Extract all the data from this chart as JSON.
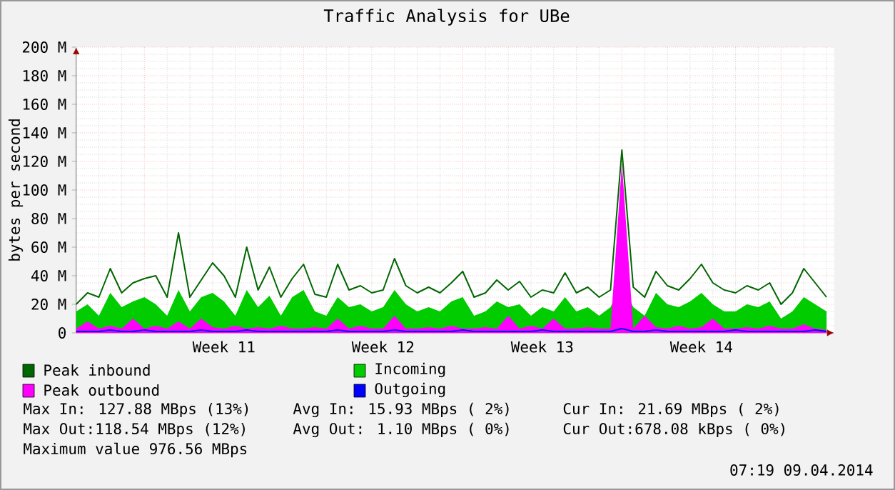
{
  "chart_data": {
    "type": "line",
    "title": "Traffic Analysis for UBe",
    "ylabel": "bytes per second",
    "categories": [
      null,
      null,
      null,
      null,
      null,
      null,
      null,
      null,
      null,
      null,
      null,
      null,
      null,
      "Week 11",
      null,
      null,
      null,
      null,
      null,
      null,
      null,
      null,
      null,
      null,
      null,
      null,
      null,
      "Week 12",
      null,
      null,
      null,
      null,
      null,
      null,
      null,
      null,
      null,
      null,
      null,
      null,
      null,
      "Week 13",
      null,
      null,
      null,
      null,
      null,
      null,
      null,
      null,
      null,
      null,
      null,
      null,
      null,
      "Week 14",
      null,
      null,
      null,
      null,
      null,
      null,
      null,
      null,
      null,
      null,
      null
    ],
    "series": [
      {
        "name": "Peak inbound",
        "color": "#006600",
        "values": [
          20,
          28,
          25,
          45,
          28,
          35,
          38,
          40,
          25,
          70,
          25,
          37,
          49,
          40,
          25,
          60,
          30,
          46,
          25,
          38,
          48,
          27,
          25,
          48,
          30,
          33,
          28,
          30,
          52,
          33,
          28,
          32,
          28,
          35,
          43,
          25,
          28,
          37,
          30,
          36,
          25,
          30,
          28,
          42,
          28,
          32,
          25,
          30,
          128,
          32,
          25,
          43,
          33,
          30,
          38,
          48,
          35,
          30,
          28,
          33,
          30,
          35,
          20,
          28,
          45,
          35,
          25
        ]
      },
      {
        "name": "Incoming",
        "type": "area",
        "color": "#00cc00",
        "values": [
          15,
          20,
          12,
          28,
          18,
          22,
          25,
          20,
          12,
          30,
          15,
          25,
          28,
          22,
          12,
          30,
          18,
          26,
          12,
          25,
          30,
          15,
          12,
          25,
          18,
          20,
          15,
          18,
          30,
          20,
          15,
          18,
          15,
          22,
          25,
          12,
          15,
          22,
          18,
          20,
          12,
          18,
          15,
          25,
          15,
          18,
          12,
          18,
          35,
          18,
          12,
          28,
          20,
          18,
          22,
          28,
          20,
          15,
          15,
          20,
          18,
          22,
          10,
          15,
          25,
          20,
          15
        ]
      },
      {
        "name": "Peak outbound",
        "type": "area",
        "color": "#ff00ff",
        "values": [
          3,
          8,
          3,
          5,
          3,
          10,
          3,
          5,
          3,
          8,
          3,
          10,
          4,
          3,
          5,
          3,
          4,
          3,
          5,
          3,
          3,
          4,
          3,
          10,
          3,
          5,
          3,
          3,
          12,
          3,
          3,
          4,
          3,
          5,
          3,
          3,
          4,
          3,
          12,
          3,
          5,
          3,
          10,
          3,
          3,
          4,
          3,
          3,
          119,
          3,
          12,
          4,
          3,
          5,
          3,
          4,
          10,
          3,
          3,
          4,
          3,
          5,
          3,
          3,
          6,
          3,
          2
        ]
      },
      {
        "name": "Outgoing",
        "color": "#0000ff",
        "values": [
          1,
          1,
          1,
          2,
          1,
          1,
          2,
          1,
          1,
          1,
          1,
          2,
          1,
          1,
          1,
          2,
          1,
          1,
          1,
          1,
          1,
          1,
          1,
          2,
          1,
          1,
          1,
          1,
          2,
          1,
          1,
          1,
          1,
          1,
          2,
          1,
          1,
          1,
          1,
          1,
          1,
          2,
          1,
          1,
          1,
          1,
          1,
          1,
          3,
          1,
          1,
          2,
          1,
          1,
          1,
          1,
          1,
          1,
          2,
          1,
          1,
          1,
          1,
          1,
          1,
          2,
          1
        ]
      }
    ],
    "ylim": [
      0,
      200
    ],
    "yticks": [
      0,
      {
        "value": 20,
        "label": "20 M"
      },
      {
        "value": 40,
        "label": "40 M"
      },
      {
        "value": 60,
        "label": "60 M"
      },
      {
        "value": 80,
        "label": "80 M"
      },
      {
        "value": 100,
        "label": "100 M"
      },
      {
        "value": 120,
        "label": "120 M"
      },
      {
        "value": 140,
        "label": "140 M"
      },
      {
        "value": 160,
        "label": "160 M"
      },
      {
        "value": 180,
        "label": "180 M"
      },
      {
        "value": 200,
        "label": "200 M"
      }
    ],
    "grid": true,
    "legend": "bottom",
    "annotations": [
      "Max In: 127.88 MBps (13%)",
      "Avg In:  15.93 MBps ( 2%)",
      "Cur In:  21.69 MBps ( 2%)",
      "Max Out:118.54 MBps (12%)",
      "Avg Out:  1.10 MBps ( 0%)",
      "Cur Out:678.08 kBps ( 0%)",
      "Maximum value 976.56 MBps",
      "07:19 09.04.2014"
    ]
  }
}
